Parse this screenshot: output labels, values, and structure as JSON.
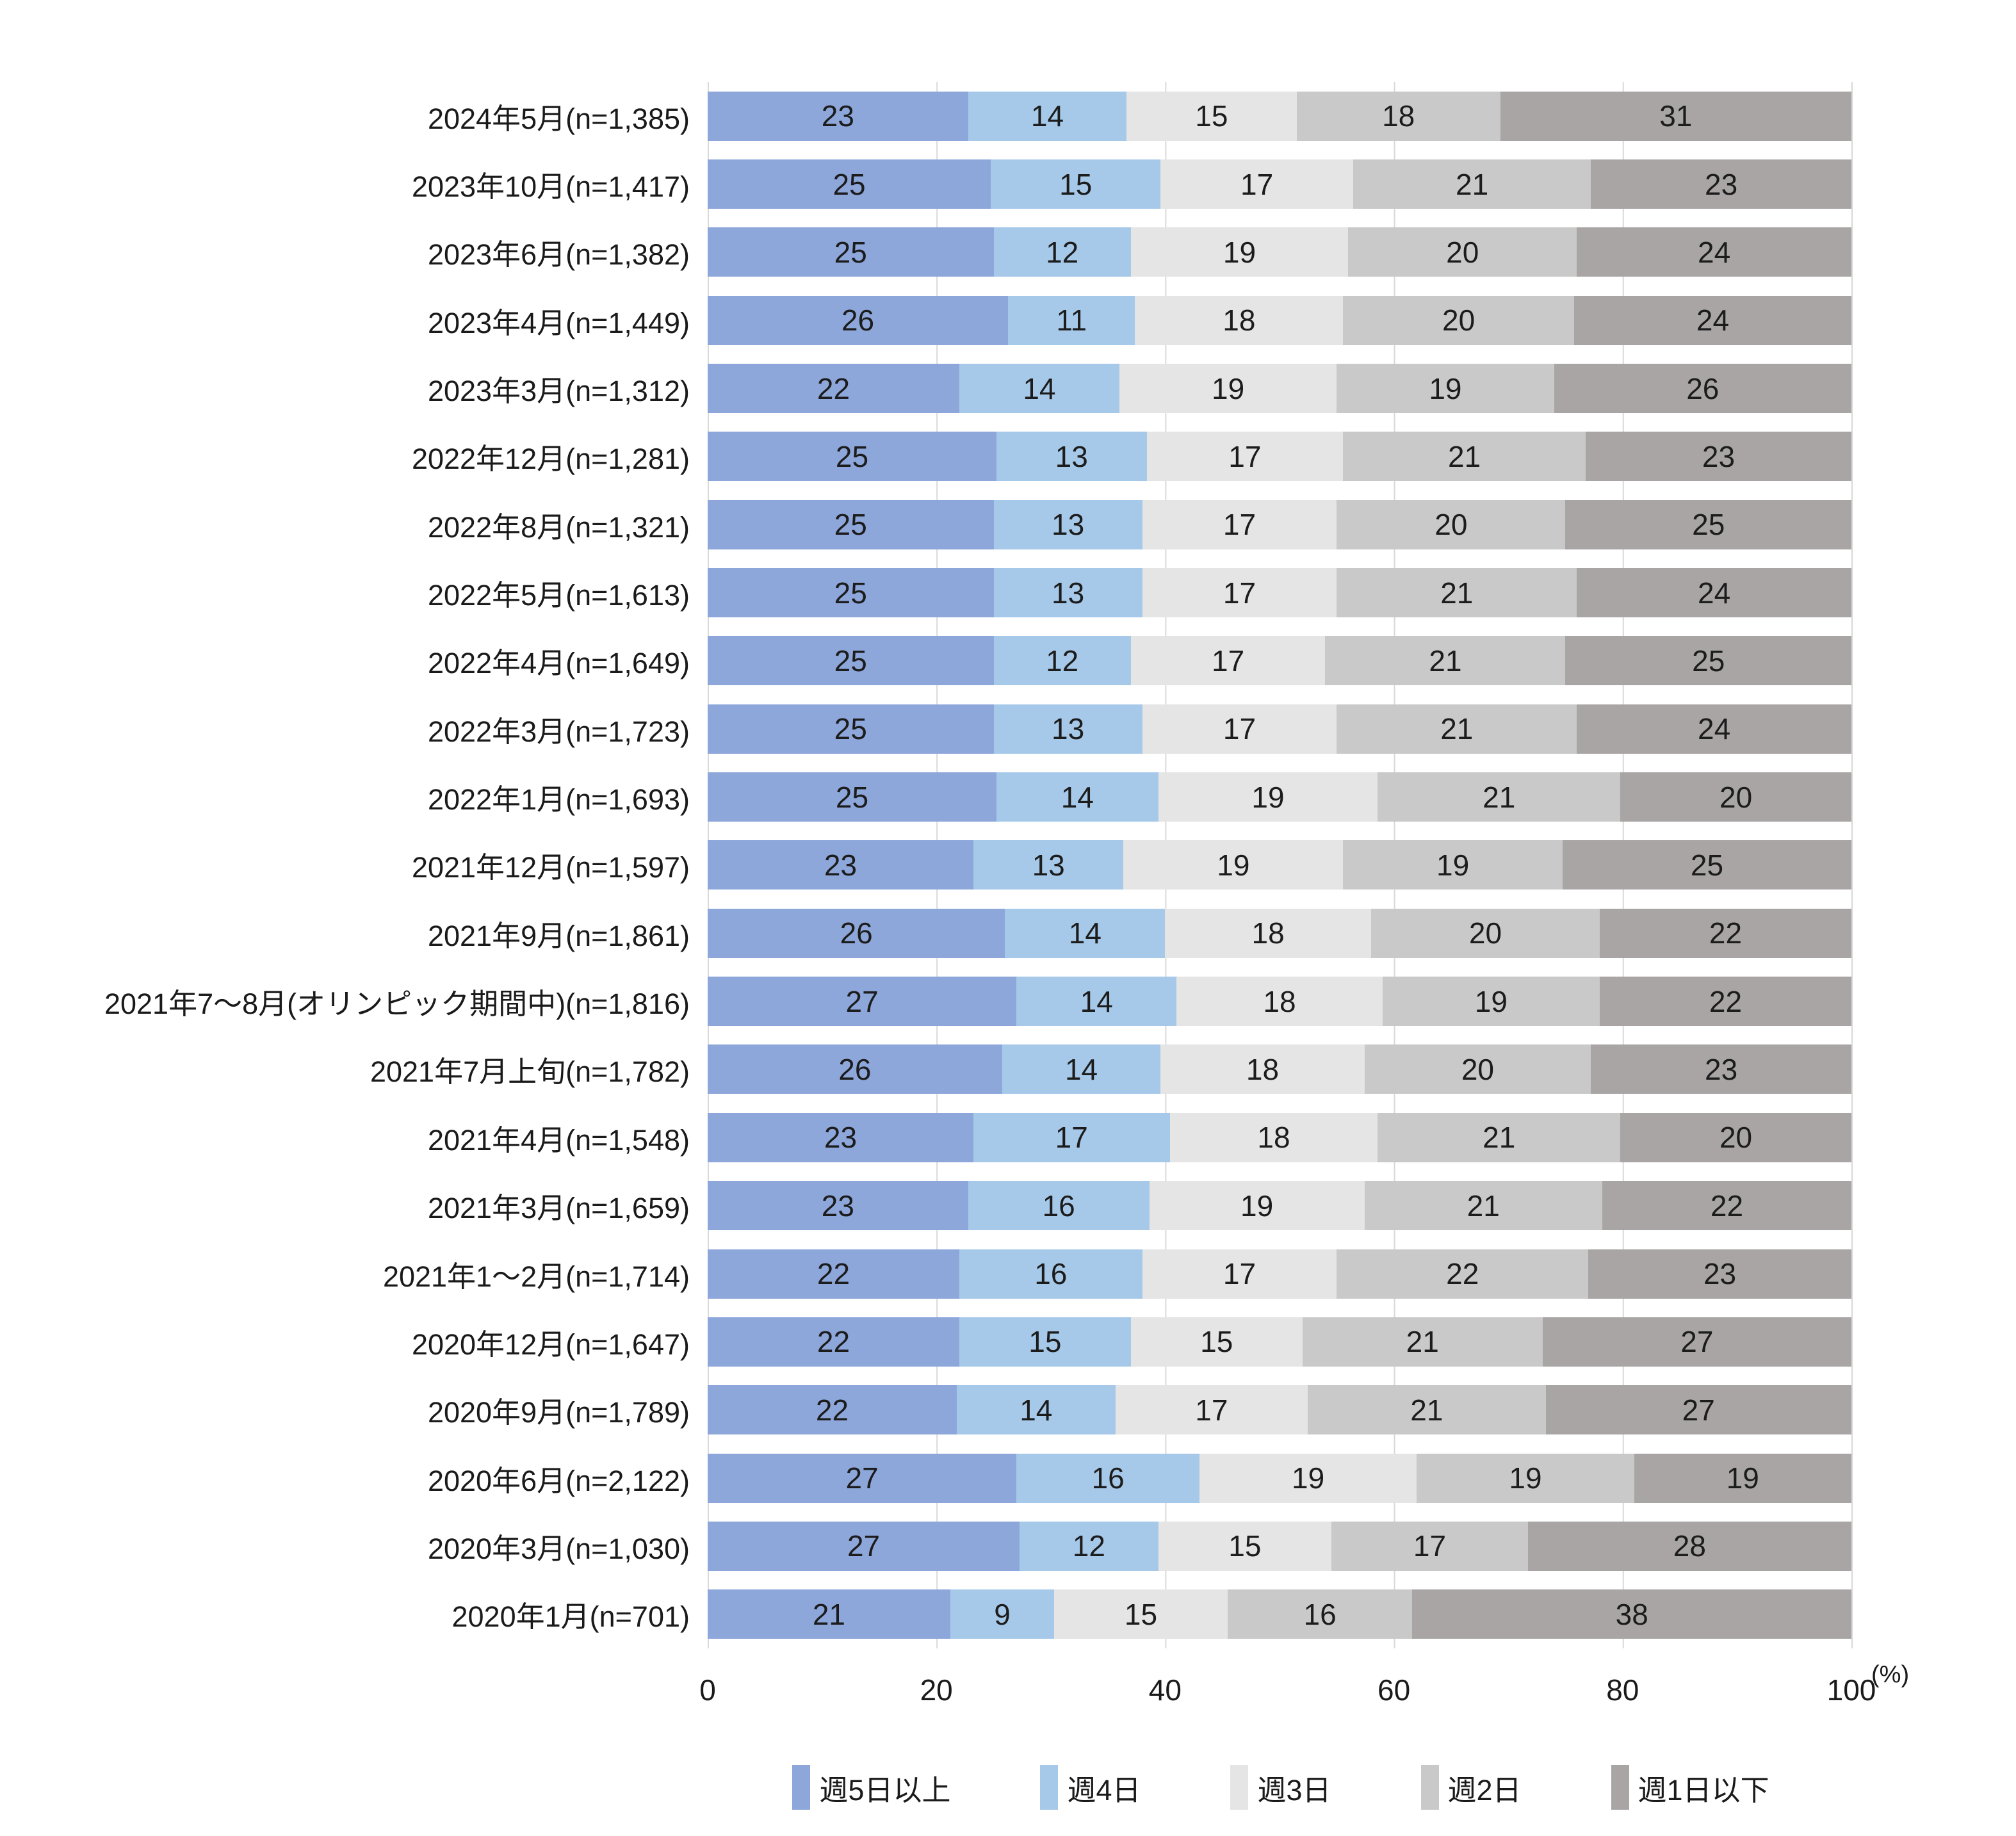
{
  "chart_data": {
    "type": "bar",
    "subtype": "horizontal-stacked-100pct",
    "title": "",
    "xlabel": "",
    "ylabel": "",
    "x_axis": {
      "ticks": [
        0,
        20,
        40,
        60,
        80,
        100
      ],
      "unit": "(%)",
      "range": [
        0,
        100
      ],
      "grid": true,
      "gridline_color": "#d9d9d9"
    },
    "legend_position": "bottom",
    "categories": [
      "2024年5月(n=1,385)",
      "2023年10月(n=1,417)",
      "2023年6月(n=1,382)",
      "2023年4月(n=1,449)",
      "2023年3月(n=1,312)",
      "2022年12月(n=1,281)",
      "2022年8月(n=1,321)",
      "2022年5月(n=1,613)",
      "2022年4月(n=1,649)",
      "2022年3月(n=1,723)",
      "2022年1月(n=1,693)",
      "2021年12月(n=1,597)",
      "2021年9月(n=1,861)",
      "2021年7〜8月(オリンピック期間中)(n=1,816)",
      "2021年7月上旬(n=1,782)",
      "2021年4月(n=1,548)",
      "2021年3月(n=1,659)",
      "2021年1〜2月(n=1,714)",
      "2020年12月(n=1,647)",
      "2020年9月(n=1,789)",
      "2020年6月(n=2,122)",
      "2020年3月(n=1,030)",
      "2020年1月(n=701)"
    ],
    "series": [
      {
        "name": "週5日以上",
        "color": "#8DA7DB",
        "values": [
          23,
          25,
          25,
          26,
          22,
          25,
          25,
          25,
          25,
          25,
          25,
          23,
          26,
          27,
          26,
          23,
          23,
          22,
          22,
          22,
          27,
          27,
          21
        ]
      },
      {
        "name": "週4日",
        "color": "#A6C9E9",
        "values": [
          14,
          15,
          12,
          11,
          14,
          13,
          13,
          13,
          12,
          13,
          14,
          13,
          14,
          14,
          14,
          17,
          16,
          16,
          15,
          14,
          16,
          12,
          9
        ]
      },
      {
        "name": "週3日",
        "color": "#E6E5E5",
        "values": [
          15,
          17,
          19,
          18,
          19,
          17,
          17,
          17,
          17,
          17,
          19,
          19,
          18,
          18,
          18,
          18,
          19,
          17,
          15,
          17,
          19,
          15,
          15
        ]
      },
      {
        "name": "週2日",
        "color": "#C9C9C9",
        "values": [
          18,
          21,
          20,
          20,
          19,
          21,
          20,
          21,
          21,
          21,
          21,
          19,
          20,
          19,
          20,
          21,
          21,
          22,
          21,
          21,
          19,
          17,
          16
        ]
      },
      {
        "name": "週1日以下",
        "color": "#A9A5A5",
        "values": [
          31,
          23,
          24,
          24,
          26,
          23,
          25,
          24,
          25,
          24,
          20,
          25,
          22,
          22,
          23,
          20,
          22,
          23,
          27,
          27,
          19,
          28,
          38
        ]
      }
    ]
  }
}
